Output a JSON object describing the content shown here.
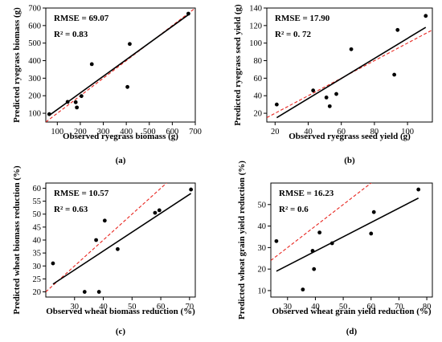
{
  "colors": {
    "fit_line": "#000000",
    "identity_line": "#e8251f",
    "points": "#000000",
    "axis": "#000000"
  },
  "chart_data": [
    {
      "type": "scatter",
      "panel_label": "(a)",
      "xlabel": "Observed ryegrass biomass (g)",
      "ylabel": "Predicted ryegrass biomass (g)",
      "rmse_text": "RMSE = 69.07",
      "r2_text": "R² = 0.83",
      "xlim": [
        50,
        700
      ],
      "ylim": [
        50,
        700
      ],
      "xticks": [
        100,
        200,
        300,
        400,
        500,
        600,
        700
      ],
      "yticks": [
        100,
        200,
        300,
        400,
        500,
        600,
        700
      ],
      "points": [
        [
          65,
          95
        ],
        [
          145,
          165
        ],
        [
          180,
          163
        ],
        [
          185,
          133
        ],
        [
          205,
          198
        ],
        [
          250,
          380
        ],
        [
          405,
          250
        ],
        [
          415,
          495
        ],
        [
          670,
          668
        ]
      ],
      "fit_line": [
        [
          65,
          88
        ],
        [
          670,
          662
        ]
      ],
      "identity_line": [
        [
          50,
          50
        ],
        [
          700,
          700
        ]
      ]
    },
    {
      "type": "scatter",
      "panel_label": "(b)",
      "xlabel": "Observed ryegrass seed yield (g)",
      "ylabel": "Predicted ryegrass seed yield (g)",
      "rmse_text": "RMSE = 17.90",
      "r2_text": "R² = 0. 72",
      "xlim": [
        15,
        115
      ],
      "ylim": [
        10,
        140
      ],
      "xticks": [
        20,
        40,
        60,
        80,
        100
      ],
      "yticks": [
        20,
        40,
        60,
        80,
        100,
        120,
        140
      ],
      "points": [
        [
          21,
          30
        ],
        [
          43,
          46
        ],
        [
          51,
          38
        ],
        [
          53,
          28
        ],
        [
          57,
          42
        ],
        [
          66,
          93
        ],
        [
          92,
          64
        ],
        [
          94,
          115
        ],
        [
          111,
          131
        ]
      ],
      "fit_line": [
        [
          21,
          15
        ],
        [
          111,
          118
        ]
      ],
      "identity_line": [
        [
          15,
          15
        ],
        [
          115,
          115
        ]
      ]
    },
    {
      "type": "scatter",
      "panel_label": "(c)",
      "xlabel": "Observed wheat biomass reduction (%)",
      "ylabel": "Predicted wheat biomass reduction (%)",
      "rmse_text": "RMSE = 10.57",
      "r2_text": "R² = 0.63",
      "xlim": [
        20,
        72
      ],
      "ylim": [
        18,
        62
      ],
      "xticks": [
        30,
        40,
        50,
        60,
        70
      ],
      "yticks": [
        20,
        25,
        30,
        35,
        40,
        45,
        50,
        55,
        60
      ],
      "points": [
        [
          22.5,
          31
        ],
        [
          33.5,
          20
        ],
        [
          37.5,
          40
        ],
        [
          38.5,
          20
        ],
        [
          40.5,
          47.5
        ],
        [
          45,
          36.5
        ],
        [
          58,
          50.5
        ],
        [
          59.5,
          51.5
        ],
        [
          70.5,
          59.5
        ]
      ],
      "fit_line": [
        [
          22.5,
          23
        ],
        [
          70.5,
          58
        ]
      ],
      "identity_line": [
        [
          20,
          20
        ],
        [
          72,
          72
        ]
      ]
    },
    {
      "type": "scatter",
      "panel_label": "(d)",
      "xlabel": "Observed wheat grain yield reduction (%)",
      "ylabel": "Predicted wheat grain yield reduction (%)",
      "rmse_text": "RMSE = 16.23",
      "r2_text": "R² = 0.6",
      "xlim": [
        24,
        82
      ],
      "ylim": [
        7,
        60
      ],
      "xticks": [
        30,
        40,
        50,
        60,
        70,
        80
      ],
      "yticks": [
        10,
        20,
        30,
        40,
        50
      ],
      "points": [
        [
          26,
          33
        ],
        [
          35.5,
          10.5
        ],
        [
          39,
          28.5
        ],
        [
          39.5,
          20
        ],
        [
          41.5,
          37
        ],
        [
          46,
          32
        ],
        [
          60,
          36.5
        ],
        [
          61,
          46.5
        ],
        [
          77,
          57
        ]
      ],
      "fit_line": [
        [
          26,
          19
        ],
        [
          77,
          53
        ]
      ],
      "identity_line": [
        [
          24,
          24
        ],
        [
          82,
          82
        ]
      ]
    }
  ]
}
